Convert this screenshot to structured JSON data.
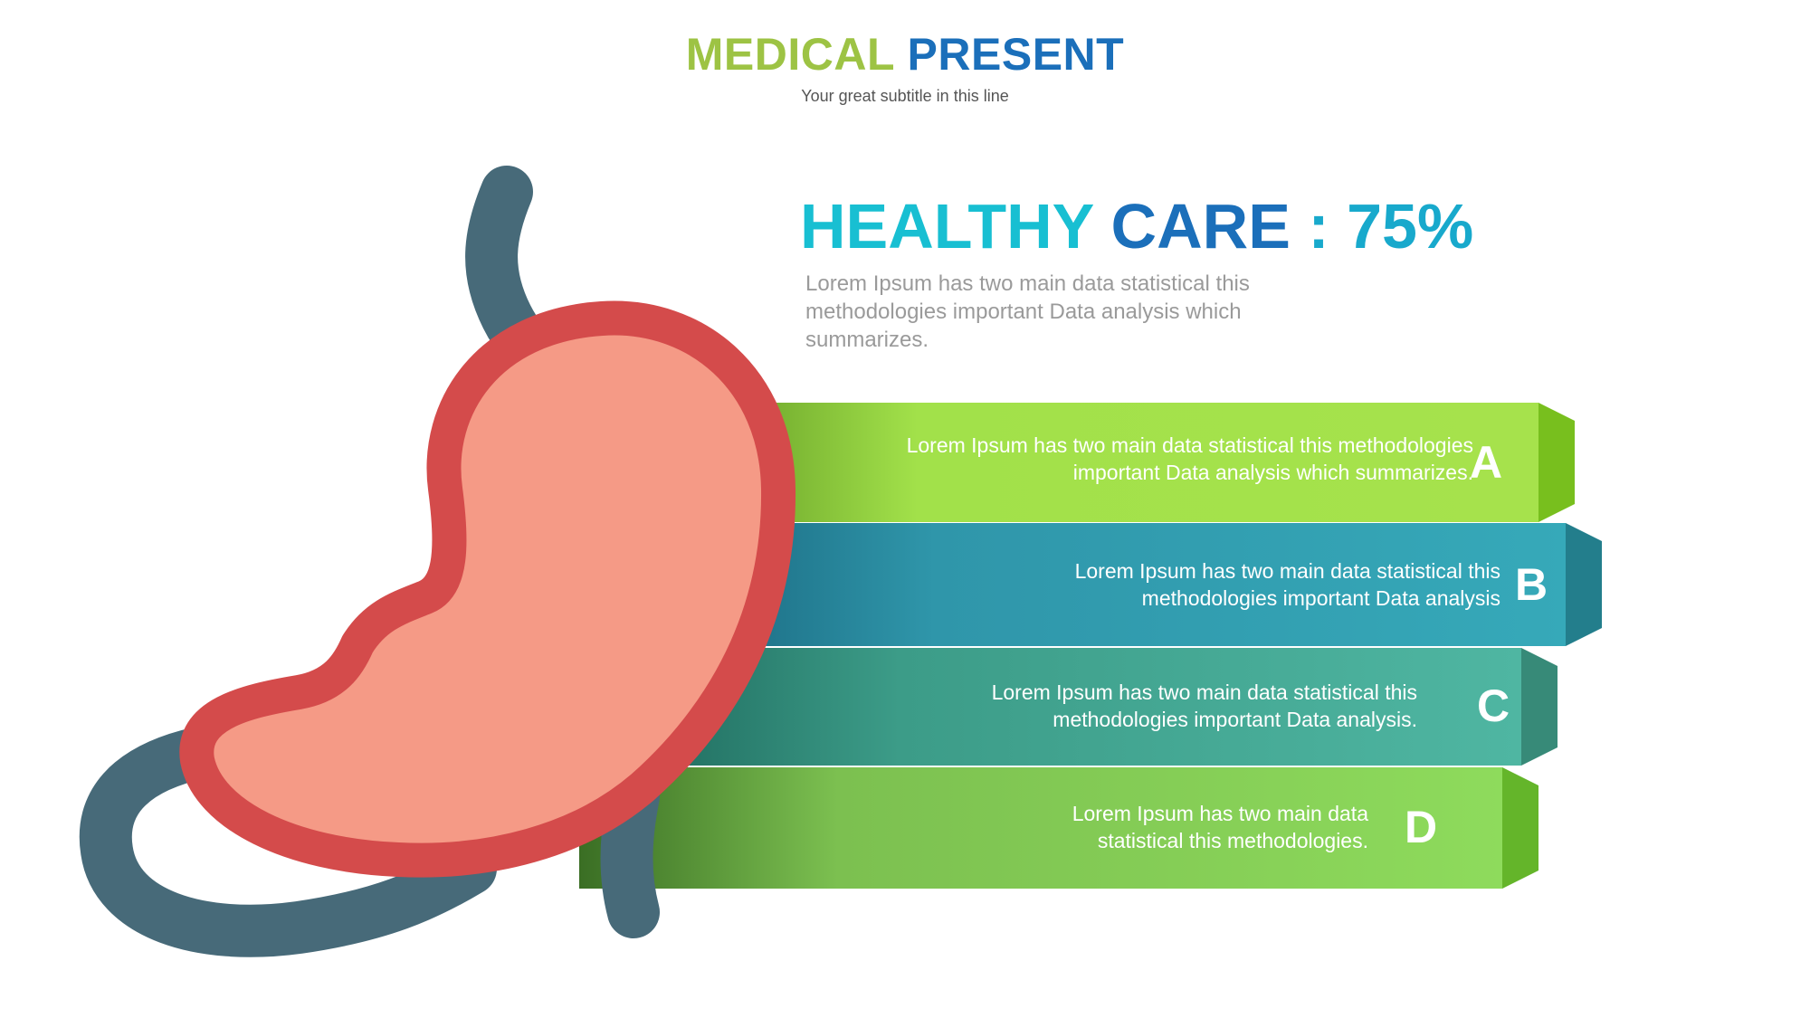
{
  "header": {
    "title_part1": "MEDICAL",
    "title_part2": "PRESENT",
    "subtitle": "Your great subtitle in this line"
  },
  "headline": {
    "part1": "HEALTHY",
    "part2": "CARE",
    "part3": ": 75%",
    "description": "Lorem Ipsum has two main data statistical this methodologies important Data analysis which summarizes."
  },
  "bands": [
    {
      "letter": "A",
      "line1": "Lorem Ipsum has two main data statistical this methodologies",
      "line2": "important Data analysis which summarizes.",
      "color": "#a2e14a"
    },
    {
      "letter": "B",
      "line1": "Lorem Ipsum has two main data statistical this",
      "line2": "methodologies important Data analysis",
      "color": "#35a8b8"
    },
    {
      "letter": "C",
      "line1": "Lorem Ipsum has two main data statistical this",
      "line2": "methodologies important Data analysis.",
      "color": "#4db5a1"
    },
    {
      "letter": "D",
      "line1": "Lorem Ipsum has two main data",
      "line2": "statistical this methodologies.",
      "color": "#8cdb5c"
    }
  ],
  "colors": {
    "green_title": "#9dc344",
    "blue_title": "#1b6fba",
    "cyan": "#18bfd2",
    "stomach_outline": "#d44b4b",
    "stomach_fill": "#f59a86",
    "esophagus": "#476a79"
  },
  "icons": [
    "stomach-illustration"
  ]
}
